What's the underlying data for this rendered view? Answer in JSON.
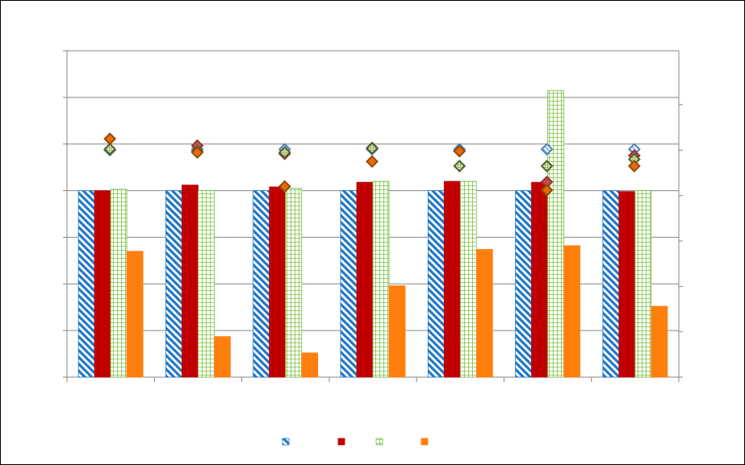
{
  "chart_data": {
    "type": "bar",
    "title": "",
    "xlabel": "",
    "ylabel": "",
    "categories": [
      "",
      "",
      "",
      "",
      "",
      "",
      ""
    ],
    "ylim_left": [
      0,
      7
    ],
    "ylim_right": [
      0,
      6
    ],
    "grid": true,
    "legend_position": "bottom",
    "bar_series": [
      {
        "name": "",
        "axis": "left",
        "pattern": "diagonal-blue",
        "color": "#1f77c8",
        "values": [
          4.0,
          4.0,
          4.0,
          4.0,
          4.0,
          4.0,
          4.0
        ]
      },
      {
        "name": "",
        "axis": "left",
        "pattern": "solid",
        "color": "#c00000",
        "values": [
          4.0,
          4.12,
          4.08,
          4.18,
          4.2,
          4.18,
          3.98
        ]
      },
      {
        "name": "",
        "axis": "left",
        "pattern": "grid-green",
        "color": "#7ac143",
        "values": [
          4.03,
          4.0,
          4.05,
          4.2,
          4.2,
          6.15,
          4.0
        ]
      },
      {
        "name": "",
        "axis": "left",
        "pattern": "solid",
        "color": "#ff7f0e",
        "values": [
          2.7,
          0.87,
          0.52,
          1.96,
          2.74,
          2.82,
          1.52
        ]
      }
    ],
    "marker_series": [
      {
        "axis": "right",
        "fill": "#aac8e8",
        "stroke": "#4f81bd",
        "pattern": "hatched",
        "values": [
          5.0,
          5.02,
          5.02,
          5.02,
          5.02,
          5.02,
          5.02
        ]
      },
      {
        "axis": "right",
        "fill": "#c0504d",
        "stroke": "#943634",
        "values": [
          5.02,
          5.1,
          4.92,
          5.05,
          4.98,
          4.3,
          4.88
        ]
      },
      {
        "axis": "right",
        "fill": "#9bbb59",
        "stroke": "#4f6228",
        "pattern": "grid",
        "values": [
          5.02,
          4.98,
          4.95,
          5.04,
          4.65,
          4.65,
          4.8
        ]
      },
      {
        "axis": "right",
        "fill": "#e46c0a",
        "stroke": "#984807",
        "values": [
          5.25,
          4.95,
          4.2,
          4.75,
          4.98,
          4.12,
          4.65
        ]
      }
    ]
  }
}
